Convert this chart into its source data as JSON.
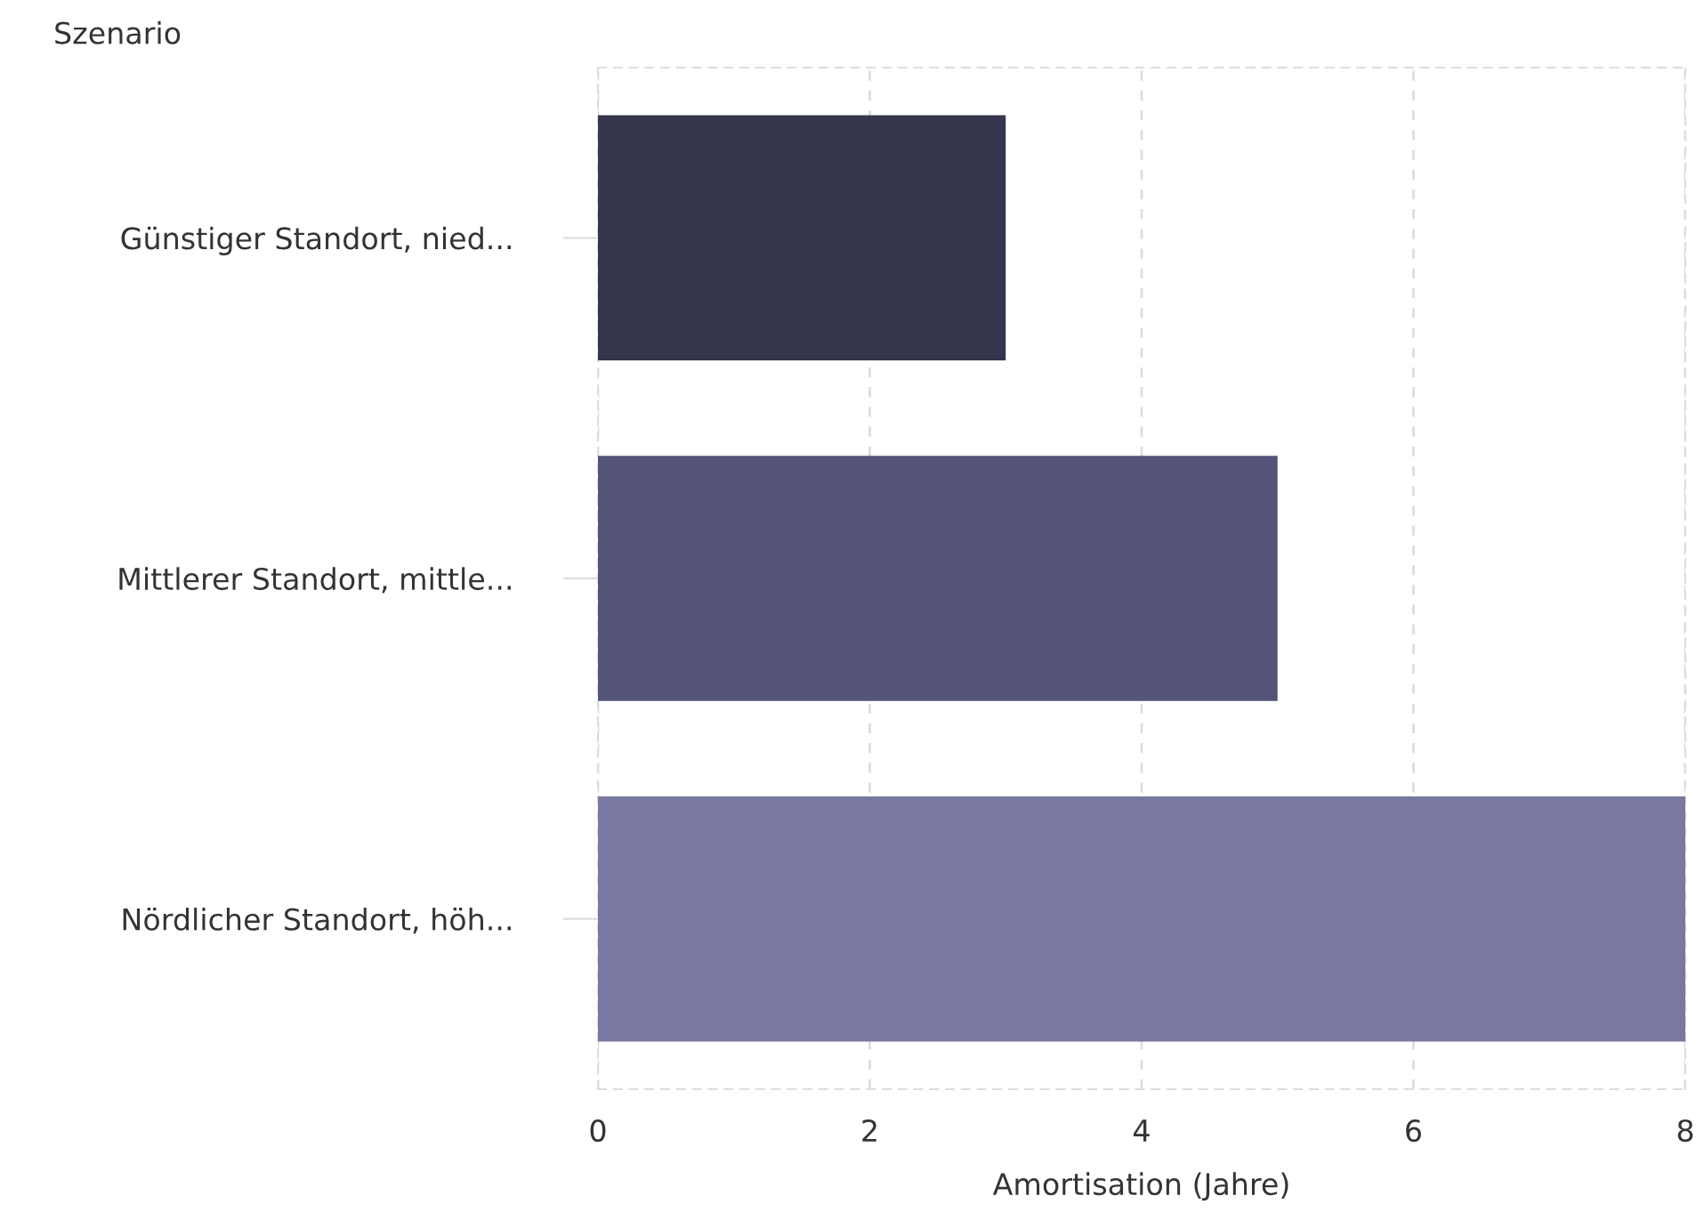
{
  "chart_data": {
    "type": "bar",
    "orientation": "horizontal",
    "ylabel": "Szenario",
    "xlabel": "Amortisation (Jahre)",
    "categories": [
      "Günstiger Standort, nied...",
      "Mittlerer Standort, mittle...",
      "Nördlicher Standort, höh..."
    ],
    "values": [
      3,
      5,
      8
    ],
    "colors": [
      "#35354d",
      "#54547a",
      "#7878a0"
    ],
    "xlim": [
      0,
      8
    ],
    "xticks": [
      0,
      2,
      4,
      6,
      8
    ],
    "grid": "x",
    "legend": false
  }
}
